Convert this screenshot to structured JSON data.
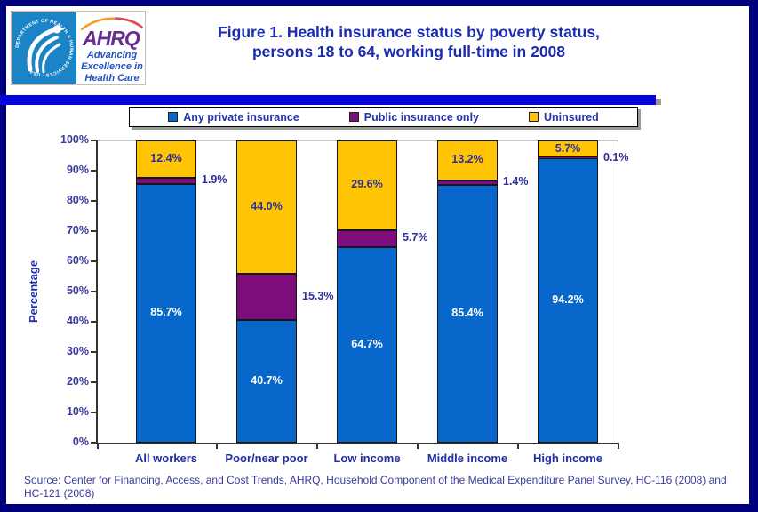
{
  "header": {
    "hhs_logo": {
      "circle_text": "DEPARTMENT OF HEALTH & HUMAN SERVICES · USA",
      "ahrq_acronym": "AHRQ",
      "tagline": [
        "Advancing",
        "Excellence in",
        "Health Care"
      ]
    },
    "title_line1": "Figure 1. Health insurance status by poverty status,",
    "title_line2": "persons 18 to 64, working full-time in 2008"
  },
  "chart_data": {
    "type": "bar",
    "stacked": true,
    "title": "Figure 1. Health insurance status by poverty status, persons 18 to 64, working full-time in 2008",
    "categories": [
      "All workers",
      "Poor/near poor",
      "Low income",
      "Middle income",
      "High income"
    ],
    "series": [
      {
        "name": "Any private insurance",
        "color": "#0767CB",
        "label_color": "#FFFFFF",
        "label_placement": "inside",
        "values": [
          85.7,
          40.7,
          64.7,
          85.4,
          94.2
        ]
      },
      {
        "name": "Public insurance only",
        "color": "#7D0C7D",
        "label_color": "#2F2F9C",
        "label_placement": "outside-right",
        "values": [
          1.9,
          15.3,
          5.7,
          1.4,
          0.1
        ]
      },
      {
        "name": "Uninsured",
        "color": "#FFC403",
        "label_color": "#2F2F9C",
        "label_placement": "inside",
        "values": [
          12.4,
          44.0,
          29.6,
          13.2,
          5.7
        ]
      }
    ],
    "xlabel": "",
    "ylabel": "Percentage",
    "ylim": [
      0,
      100
    ],
    "ytick_step": 10,
    "ytick_suffix": "%",
    "value_suffix": "%",
    "legend_position": "top",
    "grid": false
  },
  "footer": {
    "source": "Source: Center for Financing, Access, and Cost Trends, AHRQ, Household Component of the Medical Expenditure Panel Survey, HC-116 (2008) and HC-121 (2008)"
  },
  "colors": {
    "frame_border": "#00007E",
    "divider": "#0404DC",
    "title_text": "#1B2CB0",
    "axis_text": "#3A3A9E",
    "category_text": "#1F2DA6",
    "value_outside_text": "#2F2F9C",
    "axis_line": "#333333",
    "plot_border": "#C8C8C8",
    "bar_border": "#161616",
    "hhs_blue": "#1B84C6",
    "ahrq_purple": "#672E91",
    "tagline_blue": "#2152BE",
    "arc_orange": "#F59C20",
    "arc_red": "#D8486E"
  }
}
